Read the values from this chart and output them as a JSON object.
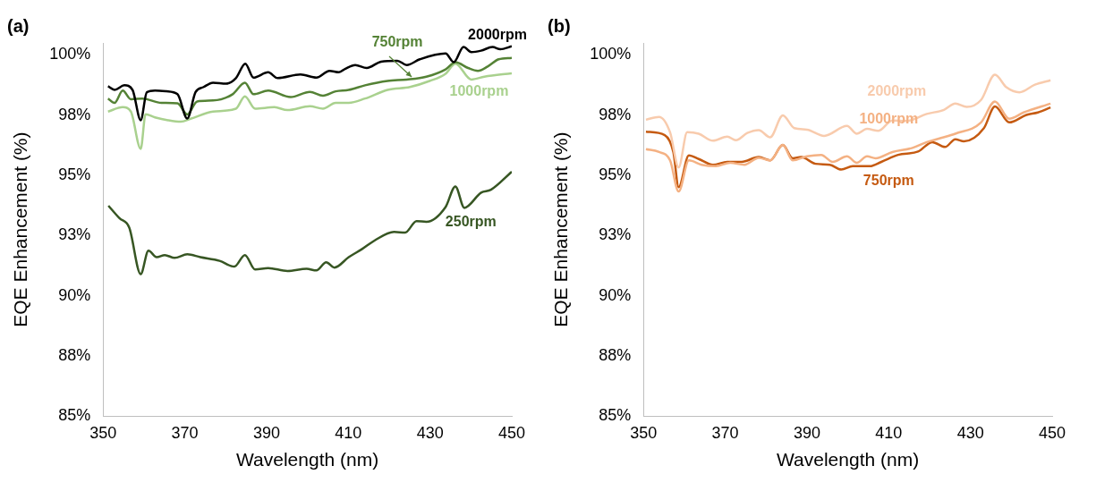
{
  "chart_data": [
    {
      "type": "line",
      "title": "(a)",
      "xlabel": "Wavelength (nm)",
      "ylabel": "EQE Enhancement (%)",
      "xlim": [
        350,
        450
      ],
      "xticks": [
        350,
        370,
        390,
        410,
        430,
        450
      ],
      "ylim": [
        85,
        100.5
      ],
      "yticks": [
        {
          "value": 85,
          "label": "85%"
        },
        {
          "value": 87.5,
          "label": "88%"
        },
        {
          "value": 90,
          "label": "90%"
        },
        {
          "value": 92.5,
          "label": "93%"
        },
        {
          "value": 95,
          "label": "95%"
        },
        {
          "value": 97.5,
          "label": "98%"
        },
        {
          "value": 100,
          "label": "100%"
        }
      ],
      "grid": false,
      "legend": false,
      "marker": "none",
      "line_style": "solid",
      "series": [
        {
          "name": "2000rpm",
          "color": "#000000",
          "x": [
            351.2,
            352.8,
            355.2,
            357.2,
            359.2,
            360.7,
            362.7,
            365.5,
            368.2,
            370.6,
            372.6,
            374.6,
            376.9,
            380.1,
            382.5,
            384.8,
            386.8,
            390.4,
            392.7,
            398.3,
            402.2,
            405.4,
            407.7,
            409.3,
            411.7,
            414.5,
            418.0,
            422.0,
            424.3,
            427.5,
            433.8,
            435.8,
            438.2,
            440.1,
            442.5,
            445.3,
            447.2,
            450
          ],
          "values": [
            98.7,
            98.55,
            98.74,
            98.55,
            97.29,
            98.45,
            98.52,
            98.49,
            98.37,
            97.36,
            98.45,
            98.67,
            98.85,
            98.81,
            99.04,
            99.64,
            99.06,
            99.28,
            99.04,
            99.19,
            99.06,
            99.34,
            99.28,
            99.43,
            99.58,
            99.46,
            99.72,
            99.76,
            99.58,
            99.82,
            100.06,
            99.7,
            100.33,
            100.12,
            100.18,
            100.33,
            100.24,
            100.36
          ]
        },
        {
          "name": "750rpm",
          "color": "#548235",
          "x": [
            351.2,
            352.8,
            354.8,
            356.8,
            359.6,
            364.3,
            368.2,
            370.6,
            373.0,
            376.9,
            381.7,
            384.7,
            386.8,
            390.4,
            395.9,
            400.6,
            403.8,
            406.9,
            410.1,
            414.1,
            419.6,
            424.3,
            429.1,
            433.8,
            436.2,
            439.3,
            441.7,
            444.1,
            446.8,
            450
          ],
          "values": [
            98.19,
            98.01,
            98.52,
            98.16,
            98.19,
            98.01,
            97.99,
            97.53,
            98.07,
            98.11,
            98.37,
            98.85,
            98.37,
            98.52,
            98.25,
            98.47,
            98.31,
            98.49,
            98.55,
            98.74,
            98.92,
            98.98,
            99.1,
            99.4,
            99.7,
            99.46,
            99.34,
            99.52,
            99.82,
            99.88
          ]
        },
        {
          "name": "1000rpm",
          "color": "#a9d18e",
          "x": [
            351.2,
            354.8,
            356.8,
            359.2,
            360.4,
            362.7,
            365.9,
            369.0,
            371.4,
            376.9,
            382.5,
            384.7,
            387.2,
            391.9,
            395.1,
            400.6,
            403.8,
            406.9,
            410.1,
            414.1,
            419.6,
            425.1,
            429.9,
            433.8,
            436.2,
            440.1,
            443.3,
            450
          ],
          "values": [
            97.65,
            97.83,
            97.65,
            96.1,
            97.54,
            97.41,
            97.29,
            97.23,
            97.35,
            97.65,
            97.77,
            98.28,
            97.77,
            97.83,
            97.71,
            97.87,
            97.77,
            98.01,
            98.01,
            98.19,
            98.55,
            98.67,
            98.92,
            99.22,
            99.64,
            98.98,
            99.1,
            99.24
          ]
        },
        {
          "name": "250rpm",
          "color": "#375623",
          "x": [
            351.3,
            354.0,
            356.4,
            359.2,
            361.1,
            363.1,
            365.1,
            367.5,
            370.6,
            373.8,
            378.5,
            382.1,
            384.7,
            387.2,
            390.4,
            395.1,
            399.8,
            402.2,
            404.6,
            406.6,
            410.1,
            413.3,
            416.4,
            421.2,
            423.9,
            426.7,
            429.1,
            433.8,
            436.2,
            438.4,
            442.5,
            444.9,
            450
          ],
          "values": [
            93.74,
            93.22,
            92.83,
            90.9,
            91.87,
            91.6,
            91.69,
            91.57,
            91.72,
            91.6,
            91.45,
            91.21,
            91.69,
            91.09,
            91.15,
            91.03,
            91.12,
            91.05,
            91.39,
            91.17,
            91.6,
            91.93,
            92.29,
            92.65,
            92.62,
            93.1,
            93.07,
            93.68,
            94.54,
            93.65,
            94.28,
            94.4,
            95.15
          ]
        }
      ]
    },
    {
      "type": "line",
      "title": "(b)",
      "xlabel": "Wavelength (nm)",
      "ylabel": "EQE Enhancement (%)",
      "xlim": [
        350,
        450
      ],
      "xticks": [
        350,
        370,
        390,
        410,
        430,
        450
      ],
      "ylim": [
        85,
        100.5
      ],
      "yticks": [
        {
          "value": 85,
          "label": "85%"
        },
        {
          "value": 87.5,
          "label": "88%"
        },
        {
          "value": 90,
          "label": "90%"
        },
        {
          "value": 92.5,
          "label": "93%"
        },
        {
          "value": 95,
          "label": "95%"
        },
        {
          "value": 97.5,
          "label": "98%"
        },
        {
          "value": 100,
          "label": "100%"
        }
      ],
      "grid": false,
      "legend": false,
      "marker": "none",
      "line_style": "solid",
      "series": [
        {
          "name": "2000rpm",
          "color": "#f8cbad",
          "x": [
            350.6,
            353.8,
            356.5,
            358.6,
            360.7,
            363.5,
            367.0,
            370.5,
            372.6,
            375.4,
            378.2,
            381.0,
            384.1,
            386.9,
            390.0,
            394.2,
            399.8,
            402.2,
            404.7,
            407.5,
            410.9,
            414.4,
            419.3,
            423.5,
            426.3,
            429.1,
            432.6,
            436.0,
            438.8,
            442.0,
            445.8,
            449.6
          ],
          "values": [
            97.31,
            97.43,
            96.79,
            95.33,
            96.79,
            96.73,
            96.44,
            96.61,
            96.46,
            96.76,
            96.88,
            96.58,
            97.49,
            96.96,
            96.9,
            96.64,
            97.05,
            96.73,
            96.93,
            96.85,
            97.28,
            97.26,
            97.55,
            97.72,
            97.98,
            97.84,
            98.13,
            99.18,
            98.66,
            98.45,
            98.77,
            98.95
          ]
        },
        {
          "name": "1000rpm",
          "color": "#f4b183",
          "x": [
            350.6,
            353.8,
            356.5,
            358.6,
            361.1,
            364.2,
            367.7,
            371.2,
            374.7,
            378.2,
            381.0,
            384.1,
            386.5,
            390.0,
            393.5,
            396.3,
            399.8,
            402.2,
            404.7,
            406.8,
            410.9,
            415.8,
            419.3,
            422.8,
            426.3,
            432.6,
            436.0,
            439.5,
            443.0,
            449.6
          ],
          "values": [
            96.09,
            95.97,
            95.62,
            94.33,
            95.62,
            95.44,
            95.38,
            95.52,
            95.44,
            95.73,
            95.62,
            96.26,
            95.62,
            95.79,
            95.85,
            95.56,
            95.79,
            95.52,
            95.79,
            95.71,
            95.97,
            96.14,
            96.38,
            96.55,
            96.73,
            97.2,
            98.07,
            97.35,
            97.61,
            97.98
          ]
        },
        {
          "name": "750rpm",
          "color": "#c55a11",
          "x": [
            350.6,
            355.2,
            357.3,
            358.6,
            361.1,
            363.5,
            367.0,
            370.5,
            374.0,
            378.2,
            381.0,
            384.1,
            386.5,
            388.6,
            392.1,
            395.6,
            398.4,
            401.2,
            405.4,
            408.2,
            412.3,
            417.2,
            420.7,
            423.8,
            426.3,
            428.4,
            433.3,
            436.0,
            439.5,
            443.7,
            446.5,
            449.6
          ],
          "values": [
            96.81,
            96.67,
            95.97,
            94.51,
            95.83,
            95.68,
            95.44,
            95.56,
            95.56,
            95.76,
            95.62,
            96.26,
            95.71,
            95.76,
            95.48,
            95.44,
            95.24,
            95.38,
            95.38,
            95.56,
            95.85,
            95.99,
            96.38,
            96.18,
            96.5,
            96.41,
            96.96,
            97.86,
            97.2,
            97.51,
            97.61,
            97.82
          ]
        }
      ]
    }
  ]
}
